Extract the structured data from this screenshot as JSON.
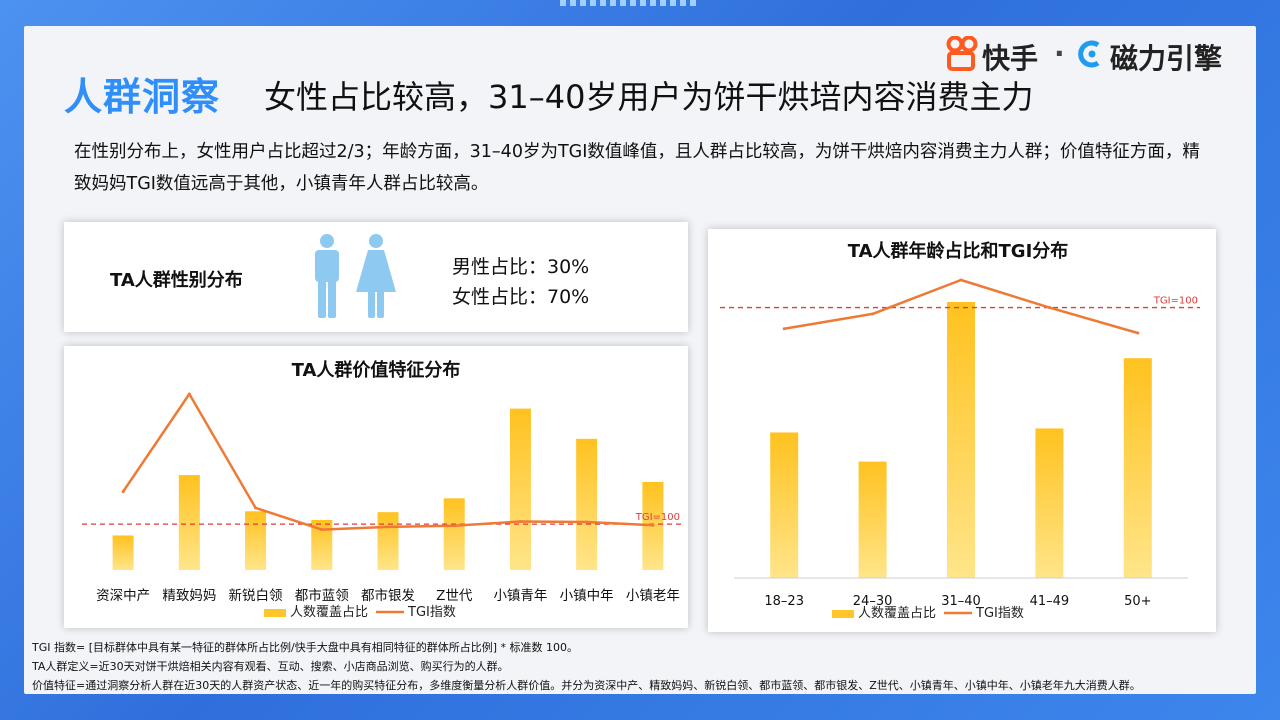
{
  "header": {
    "title_key": "人群洞察",
    "title_main": "女性占比较高，31–40岁用户为饼干烘培内容消费主力",
    "logo_brand": "快手",
    "logo_sep": "·",
    "logo_sub": "磁力引擎"
  },
  "intro": "在性别分布上，女性用户占比超过2/3；年龄方面，31–40岁为TGI数值峰值，且人群占比较高，为饼干烘焙内容消费主力人群；价值特征方面，精致妈妈TGI数值远高于其他，小镇青年人群占比较高。",
  "gender": {
    "title": "TA人群性别分布",
    "male": "男性占比：30%",
    "female": "女性占比：70%"
  },
  "colors": {
    "bar": "#ffc52a",
    "line": "#ee7a36",
    "ref": "#e03a3a",
    "title_accent": "#2f8ef7"
  },
  "chart_data": [
    {
      "type": "bar",
      "title": "TA人群价值特征分布",
      "categories": [
        "资深中产",
        "精致妈妈",
        "新锐白领",
        "都市蓝领",
        "都市银发",
        "Z世代",
        "小镇青年",
        "小镇中年",
        "小镇老年"
      ],
      "series": [
        {
          "name": "人数覆盖占比",
          "type": "bar",
          "values": [
            4,
            11,
            6.8,
            5.8,
            6.7,
            8.3,
            18.7,
            15.2,
            10.2
          ]
        },
        {
          "name": "TGI指数",
          "type": "line",
          "values": [
            160,
            340,
            130,
            90,
            95,
            97,
            105,
            104,
            98
          ]
        }
      ],
      "reference_line": {
        "label": "TGI=100",
        "value": 100
      },
      "legend_position": "bottom",
      "grid": false
    },
    {
      "type": "bar",
      "title": "TA人群年龄占比和TGI分布",
      "categories": [
        "18–23",
        "24–30",
        "31–40",
        "41–49",
        "50+"
      ],
      "series": [
        {
          "name": "人数覆盖占比",
          "type": "bar",
          "values": [
            14.5,
            11.6,
            27.5,
            14.9,
            21.9
          ]
        },
        {
          "name": "TGI指数",
          "type": "line",
          "values": [
            90,
            97,
            113,
            100,
            88
          ]
        }
      ],
      "reference_line": {
        "label": "TGI=100",
        "value": 100
      },
      "legend_position": "bottom",
      "grid": false
    }
  ],
  "notes": [
    "TGI 指数= [目标群体中具有某一特征的群体所占比例/快手大盘中具有相同特征的群体所占比例] * 标准数 100。",
    "TA人群定义=近30天对饼干烘焙相关内容有观看、互动、搜索、小店商品浏览、购买行为的人群。",
    "价值特征=通过洞察分析人群在近30天的人群资产状态、近一年的购买特征分布，多维度衡量分析人群价值。并分为资深中产、精致妈妈、新锐白领、都市蓝领、都市银发、Z世代、小镇青年、小镇中年、小镇老年九大消费人群。"
  ]
}
